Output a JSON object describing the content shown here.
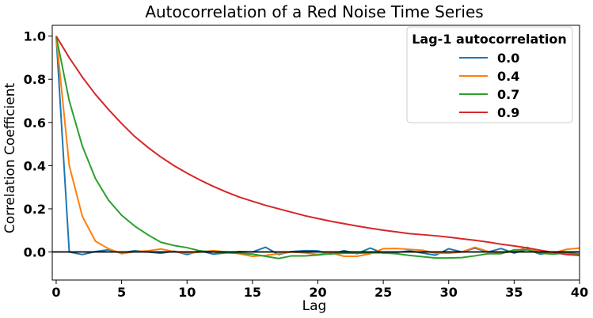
{
  "chart_data": {
    "type": "line",
    "title": "Autocorrelation of a Red Noise Time Series",
    "xlabel": "Lag",
    "ylabel": "Correlation Coefficient",
    "xlim": [
      -0.3,
      40
    ],
    "ylim": [
      -0.13,
      1.05
    ],
    "xticks": [
      0,
      5,
      10,
      15,
      20,
      25,
      30,
      35,
      40
    ],
    "yticks": [
      0.0,
      0.2,
      0.4,
      0.6,
      0.8,
      1.0
    ],
    "xtick_labels": [
      "0",
      "5",
      "10",
      "15",
      "20",
      "25",
      "30",
      "35",
      "40"
    ],
    "ytick_labels": [
      "0.0",
      "0.2",
      "0.4",
      "0.6",
      "0.8",
      "1.0"
    ],
    "zero_line": true,
    "grid": false,
    "legend": {
      "title": "Lag-1 autocorrelation",
      "placement": "top-right"
    },
    "series": [
      {
        "name": "0.0",
        "color": "#1f77b4",
        "x": [
          0,
          1,
          2,
          3,
          4,
          5,
          6,
          7,
          8,
          9,
          10,
          11,
          12,
          13,
          14,
          15,
          16,
          17,
          18,
          19,
          20,
          21,
          22,
          23,
          24,
          25,
          26,
          27,
          28,
          29,
          30,
          31,
          32,
          33,
          34,
          35,
          36,
          37,
          38,
          39,
          40
        ],
        "y": [
          1.0,
          0.0,
          -0.012,
          0.002,
          0.01,
          -0.005,
          0.006,
          0.0,
          -0.006,
          0.004,
          -0.012,
          0.006,
          -0.01,
          -0.004,
          0.002,
          0.0,
          0.022,
          -0.012,
          0.002,
          0.006,
          0.005,
          -0.01,
          0.006,
          -0.008,
          0.018,
          -0.005,
          -0.002,
          0.005,
          -0.005,
          -0.015,
          0.015,
          0.0,
          0.018,
          0.0,
          0.016,
          -0.005,
          0.012,
          -0.01,
          0.0,
          0.0,
          0.0
        ]
      },
      {
        "name": "0.4",
        "color": "#ff7f0e",
        "x": [
          0,
          1,
          2,
          3,
          4,
          5,
          6,
          7,
          8,
          9,
          10,
          11,
          12,
          13,
          14,
          15,
          16,
          17,
          18,
          19,
          20,
          21,
          22,
          23,
          24,
          25,
          26,
          27,
          28,
          29,
          30,
          31,
          32,
          33,
          34,
          35,
          36,
          37,
          38,
          39,
          40
        ],
        "y": [
          1.0,
          0.4,
          0.165,
          0.05,
          0.015,
          -0.008,
          0.002,
          0.005,
          0.014,
          0.002,
          -0.006,
          0.0,
          0.006,
          0.0,
          -0.008,
          -0.02,
          -0.016,
          -0.008,
          0.0,
          -0.004,
          -0.012,
          -0.004,
          -0.02,
          -0.02,
          -0.008,
          0.015,
          0.016,
          0.012,
          0.008,
          -0.006,
          -0.006,
          0.0,
          0.022,
          0.002,
          -0.004,
          0.002,
          0.022,
          -0.004,
          -0.005,
          0.012,
          0.018
        ]
      },
      {
        "name": "0.7",
        "color": "#2ca02c",
        "x": [
          0,
          1,
          2,
          3,
          4,
          5,
          6,
          7,
          8,
          9,
          10,
          11,
          12,
          13,
          14,
          15,
          16,
          17,
          18,
          19,
          20,
          21,
          22,
          23,
          24,
          25,
          26,
          27,
          28,
          29,
          30,
          31,
          32,
          33,
          34,
          35,
          36,
          37,
          38,
          39,
          40
        ],
        "y": [
          1.0,
          0.7,
          0.49,
          0.34,
          0.24,
          0.17,
          0.12,
          0.08,
          0.045,
          0.03,
          0.02,
          0.005,
          0.0,
          -0.004,
          -0.006,
          -0.01,
          -0.02,
          -0.03,
          -0.018,
          -0.018,
          -0.014,
          -0.008,
          -0.006,
          -0.006,
          -0.004,
          -0.004,
          -0.008,
          -0.016,
          -0.022,
          -0.028,
          -0.028,
          -0.026,
          -0.018,
          -0.008,
          -0.008,
          0.01,
          0.01,
          -0.006,
          -0.01,
          -0.004,
          -0.01
        ]
      },
      {
        "name": "0.9",
        "color": "#d62728",
        "x": [
          0,
          1,
          2,
          3,
          4,
          5,
          6,
          7,
          8,
          9,
          10,
          11,
          12,
          13,
          14,
          15,
          16,
          17,
          18,
          19,
          20,
          21,
          22,
          23,
          24,
          25,
          26,
          27,
          28,
          29,
          30,
          31,
          32,
          33,
          34,
          35,
          36,
          37,
          38,
          39,
          40
        ],
        "y": [
          1.0,
          0.9,
          0.81,
          0.73,
          0.66,
          0.595,
          0.535,
          0.485,
          0.44,
          0.4,
          0.365,
          0.333,
          0.304,
          0.278,
          0.254,
          0.235,
          0.216,
          0.2,
          0.184,
          0.168,
          0.155,
          0.142,
          0.131,
          0.12,
          0.11,
          0.101,
          0.093,
          0.085,
          0.08,
          0.075,
          0.069,
          0.061,
          0.054,
          0.046,
          0.036,
          0.028,
          0.019,
          0.008,
          -0.002,
          -0.012,
          -0.016
        ]
      }
    ]
  }
}
